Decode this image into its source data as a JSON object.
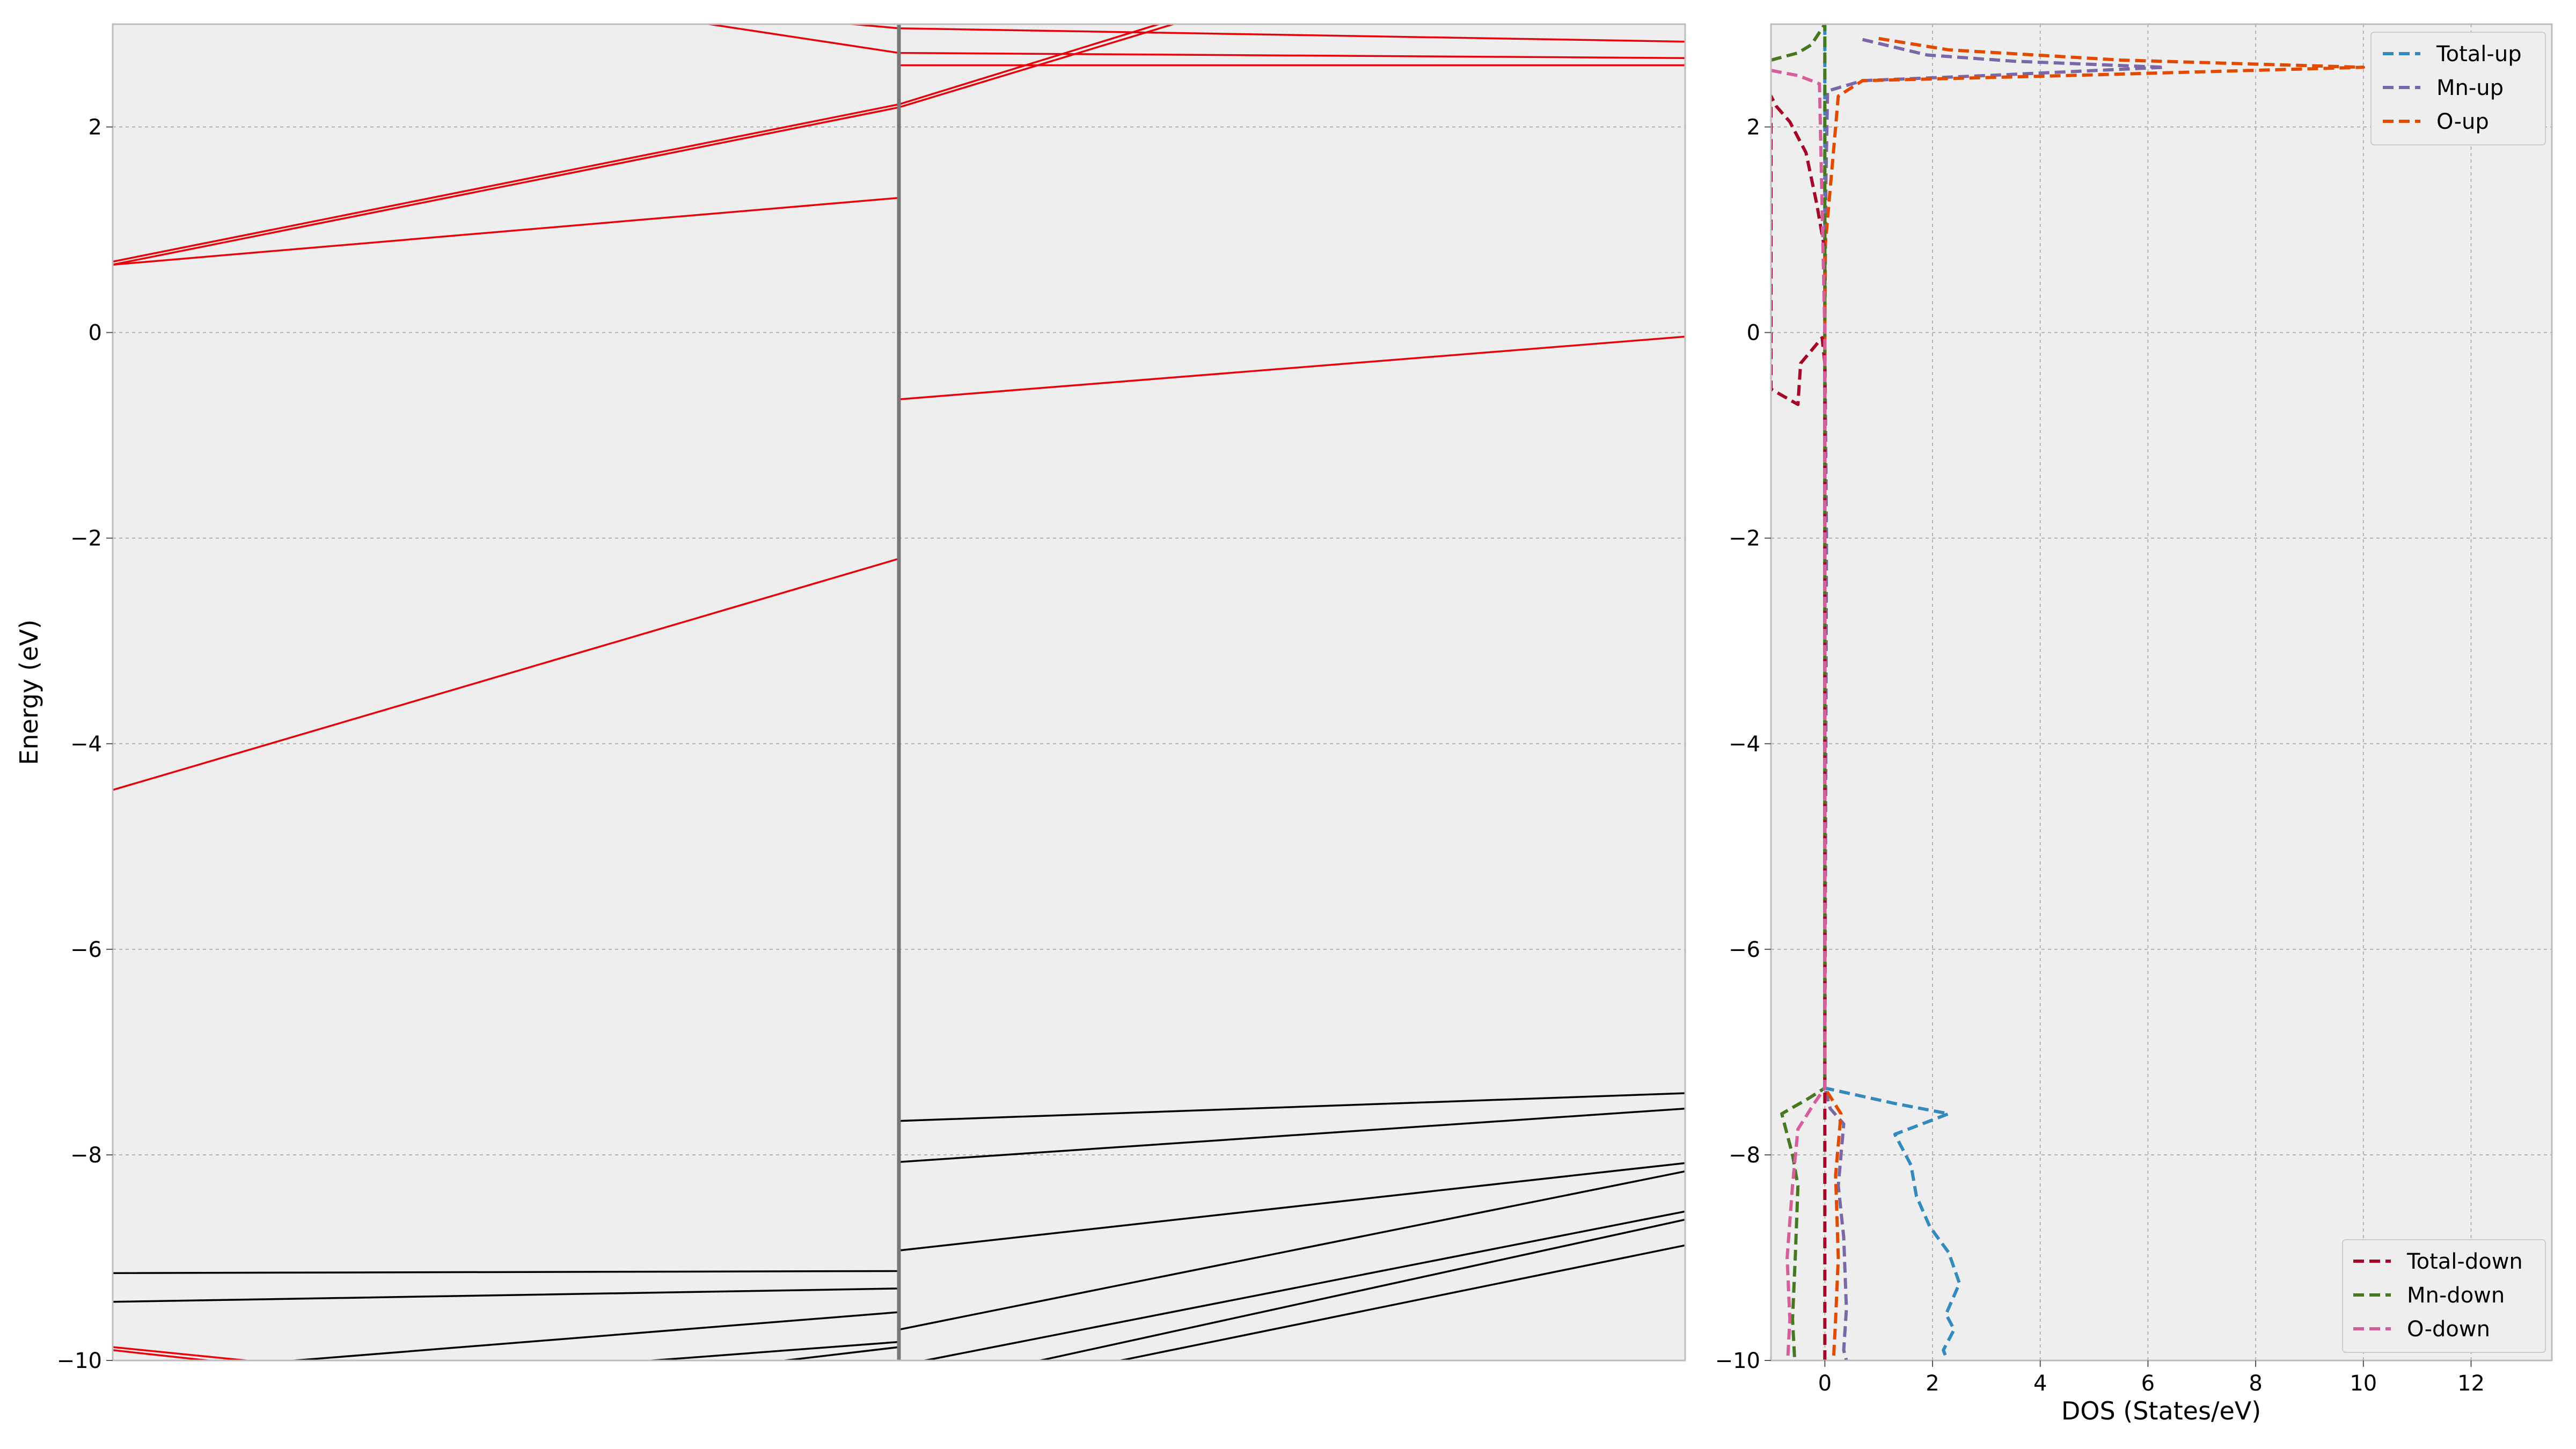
{
  "chart_data": [
    {
      "type": "line",
      "panel": "band-structure",
      "title": "",
      "xlabel": "",
      "ylabel": "Energy (eV)",
      "ylim": [
        -10,
        3
      ],
      "xlim": [
        0,
        2
      ],
      "grid": true,
      "yticks": [
        -10,
        -8,
        -6,
        -4,
        -2,
        0,
        2
      ],
      "ytick_labels": [
        "−10",
        "−8",
        "−6",
        "−4",
        "−2",
        "0",
        "2"
      ],
      "kpoint_separators": [
        1
      ],
      "band_colors": {
        "up": "#e8000b",
        "down": "#000000"
      },
      "spin_up_bands": [
        {
          "x": [
            0,
            1,
            1.5
          ],
          "y": [
            0.69,
            2.22,
            3.4
          ]
        },
        {
          "x": [
            0,
            1,
            1.5
          ],
          "y": [
            0.66,
            2.19,
            3.35
          ]
        },
        {
          "x": [
            0,
            1,
            1,
            2
          ],
          "y": [
            0.66,
            1.31,
            2.6,
            2.6
          ]
        },
        {
          "x": [
            0,
            1,
            1,
            2
          ],
          "y": [
            -4.45,
            -2.2,
            -0.65,
            -0.04
          ]
        },
        {
          "x": [
            0.5,
            1,
            1,
            2
          ],
          "y": [
            3.3,
            2.72,
            2.72,
            2.67
          ]
        },
        {
          "x": [
            0.5,
            1,
            1,
            2
          ],
          "y": [
            3.3,
            2.96,
            2.96,
            2.83
          ]
        },
        {
          "x": [
            0,
            0.3
          ],
          "y": [
            -9.87,
            -10.1
          ]
        },
        {
          "x": [
            0,
            0.3
          ],
          "y": [
            -9.9,
            -10.15
          ]
        }
      ],
      "spin_down_bands": [
        {
          "x": [
            0,
            1,
            1,
            2
          ],
          "y": [
            -9.15,
            -9.13,
            -7.67,
            -7.4
          ]
        },
        {
          "x": [
            0,
            1,
            1,
            2
          ],
          "y": [
            -9.43,
            -9.3,
            -8.07,
            -7.55
          ]
        },
        {
          "x": [
            0.15,
            1,
            1,
            2
          ],
          "y": [
            -10.05,
            -9.53,
            -8.93,
            -8.08
          ]
        },
        {
          "x": [
            0.6,
            1,
            1,
            2
          ],
          "y": [
            -10.05,
            -9.82,
            -9.7,
            -8.16
          ]
        },
        {
          "x": [
            0.8,
            1,
            1,
            2
          ],
          "y": [
            -10.05,
            -9.87,
            -10.05,
            -8.55
          ]
        },
        {
          "x": [
            1.15,
            2
          ],
          "y": [
            -10.05,
            -8.63
          ]
        },
        {
          "x": [
            1.25,
            2
          ],
          "y": [
            -10.05,
            -8.88
          ]
        }
      ]
    },
    {
      "type": "line",
      "panel": "dos",
      "title": "",
      "xlabel": "DOS (States/eV)",
      "ylabel": "",
      "xlim": [
        -1,
        13.5
      ],
      "ylim": [
        -10,
        3
      ],
      "grid": true,
      "xticks": [
        0,
        2,
        4,
        6,
        8,
        10,
        12
      ],
      "xtick_labels": [
        "0",
        "2",
        "4",
        "6",
        "8",
        "10",
        "12"
      ],
      "yticks": [
        -10,
        -8,
        -6,
        -4,
        -2,
        0,
        2
      ],
      "ytick_labels": [
        "−10",
        "−8",
        "−6",
        "−4",
        "−2",
        "0",
        "2"
      ],
      "legend_up_placement": "top-right",
      "legend_down_placement": "bottom-right",
      "series": [
        {
          "name": "Total-up",
          "color": "#348abd",
          "legend": "up",
          "points": [
            [
              0,
              3.0
            ],
            [
              0,
              2.55
            ],
            [
              0,
              2.45
            ],
            [
              0,
              -7.35
            ],
            [
              1.3,
              -7.5
            ],
            [
              2.3,
              -7.6
            ],
            [
              1.3,
              -7.8
            ],
            [
              1.6,
              -8.1
            ],
            [
              1.7,
              -8.4
            ],
            [
              1.95,
              -8.7
            ],
            [
              2.3,
              -8.95
            ],
            [
              2.5,
              -9.25
            ],
            [
              2.25,
              -9.55
            ],
            [
              2.4,
              -9.7
            ],
            [
              2.2,
              -9.9
            ],
            [
              2.35,
              -10.1
            ]
          ]
        },
        {
          "name": "Mn-up",
          "color": "#7a68a6",
          "legend": "up",
          "points": [
            [
              0.7,
              2.85
            ],
            [
              1.9,
              2.7
            ],
            [
              3.5,
              2.64
            ],
            [
              6.3,
              2.58
            ],
            [
              3.0,
              2.5
            ],
            [
              0.7,
              2.45
            ],
            [
              0.05,
              2.35
            ],
            [
              0.02,
              1.5
            ],
            [
              0,
              0
            ],
            [
              0.03,
              -2
            ],
            [
              0,
              -7.35
            ],
            [
              0.1,
              -7.55
            ],
            [
              0.35,
              -7.7
            ],
            [
              0.25,
              -8.3
            ],
            [
              0.35,
              -8.8
            ],
            [
              0.4,
              -9.5
            ],
            [
              0.35,
              -9.9
            ],
            [
              0.45,
              -10.1
            ]
          ]
        },
        {
          "name": "O-up",
          "color": "#e24a00",
          "legend": "up",
          "points": [
            [
              1.0,
              2.86
            ],
            [
              2.3,
              2.75
            ],
            [
              5.5,
              2.65
            ],
            [
              10.0,
              2.58
            ],
            [
              4.5,
              2.5
            ],
            [
              0.7,
              2.45
            ],
            [
              0.25,
              2.3
            ],
            [
              0.15,
              1.7
            ],
            [
              0,
              0.8
            ],
            [
              0,
              -7.35
            ],
            [
              0.3,
              -7.6
            ],
            [
              0.2,
              -8.2
            ],
            [
              0.25,
              -9.0
            ],
            [
              0.2,
              -9.6
            ],
            [
              0.15,
              -10.1
            ]
          ]
        },
        {
          "name": "Total-down",
          "color": "#a60628",
          "legend": "down",
          "points": [
            [
              0,
              0.8
            ],
            [
              -0.15,
              1.25
            ],
            [
              -0.35,
              1.75
            ],
            [
              -0.65,
              2.05
            ],
            [
              -0.9,
              2.2
            ],
            [
              -1.0,
              2.3
            ],
            [
              -1.0,
              -0.55
            ],
            [
              -0.5,
              -0.7
            ],
            [
              -0.45,
              -0.3
            ],
            [
              -0.05,
              -0.05
            ],
            [
              0,
              -0.3
            ],
            [
              0,
              -7.35
            ],
            [
              0,
              -10.1
            ]
          ]
        },
        {
          "name": "Mn-down",
          "color": "#467821",
          "legend": "down",
          "points": [
            [
              -1.0,
              2.65
            ],
            [
              -0.5,
              2.72
            ],
            [
              -0.25,
              2.8
            ],
            [
              0,
              3.0
            ],
            [
              0,
              -7.35
            ],
            [
              -0.3,
              -7.45
            ],
            [
              -0.8,
              -7.6
            ],
            [
              -0.6,
              -8.0
            ],
            [
              -0.5,
              -8.3
            ],
            [
              -0.55,
              -9.0
            ],
            [
              -0.6,
              -9.6
            ],
            [
              -0.55,
              -10.1
            ]
          ]
        },
        {
          "name": "O-down",
          "color": "#d55e9b",
          "legend": "down",
          "points": [
            [
              -1.0,
              2.55
            ],
            [
              -0.5,
              2.5
            ],
            [
              -0.1,
              2.42
            ],
            [
              0,
              0
            ],
            [
              0,
              -7.35
            ],
            [
              -0.2,
              -7.5
            ],
            [
              -0.5,
              -7.75
            ],
            [
              -0.6,
              -8.3
            ],
            [
              -0.7,
              -9.0
            ],
            [
              -0.65,
              -9.6
            ],
            [
              -0.7,
              -10.1
            ]
          ]
        }
      ]
    }
  ]
}
